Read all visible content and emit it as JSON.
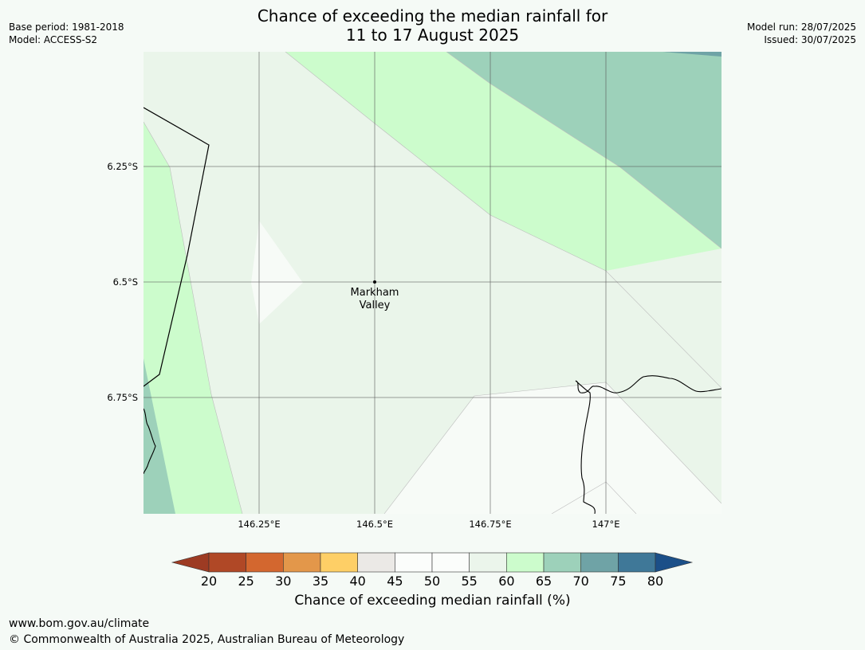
{
  "header": {
    "title_line1": "Chance of exceeding the median rainfall for",
    "title_line2": "11 to 17 August 2025",
    "base_period": "Base period: 1981-2018",
    "model": "Model: ACCESS-S2",
    "model_run": "Model run: 28/07/2025",
    "issued": "Issued: 30/07/2025"
  },
  "map": {
    "lat_labels": [
      "6.25°S",
      "6.5°S",
      "6.75°S"
    ],
    "lon_labels": [
      "146.25°E",
      "146.5°E",
      "146.75°E",
      "147°E"
    ],
    "place": {
      "line1": "Markham",
      "line2": "Valley"
    },
    "zone_colors": {
      "c45_50": "#f7fbf7",
      "c55_60": "#eaf5ea",
      "c60_65": "#ccfccc",
      "c65_70": "#9dd1ba",
      "c70_75": "#6fa3a6"
    }
  },
  "colorbar": {
    "ticks": [
      "20",
      "25",
      "30",
      "35",
      "40",
      "45",
      "50",
      "55",
      "60",
      "65",
      "70",
      "75",
      "80"
    ],
    "colors": [
      "#b04826",
      "#d3672f",
      "#e3974a",
      "#fecf66",
      "#ebe9e6",
      "#fbfdfb",
      "#fbfdfb",
      "#ebf5eb",
      "#ccfccc",
      "#9dd1ba",
      "#6fa3a6",
      "#3f7898"
    ],
    "under_color": "#9d3b23",
    "over_color": "#1b4f88",
    "label": "Chance of exceeding median rainfall (%)"
  },
  "footer": {
    "url": "www.bom.gov.au/climate",
    "copyright": "© Commonwealth of Australia 2025, Australian Bureau of Meteorology"
  }
}
